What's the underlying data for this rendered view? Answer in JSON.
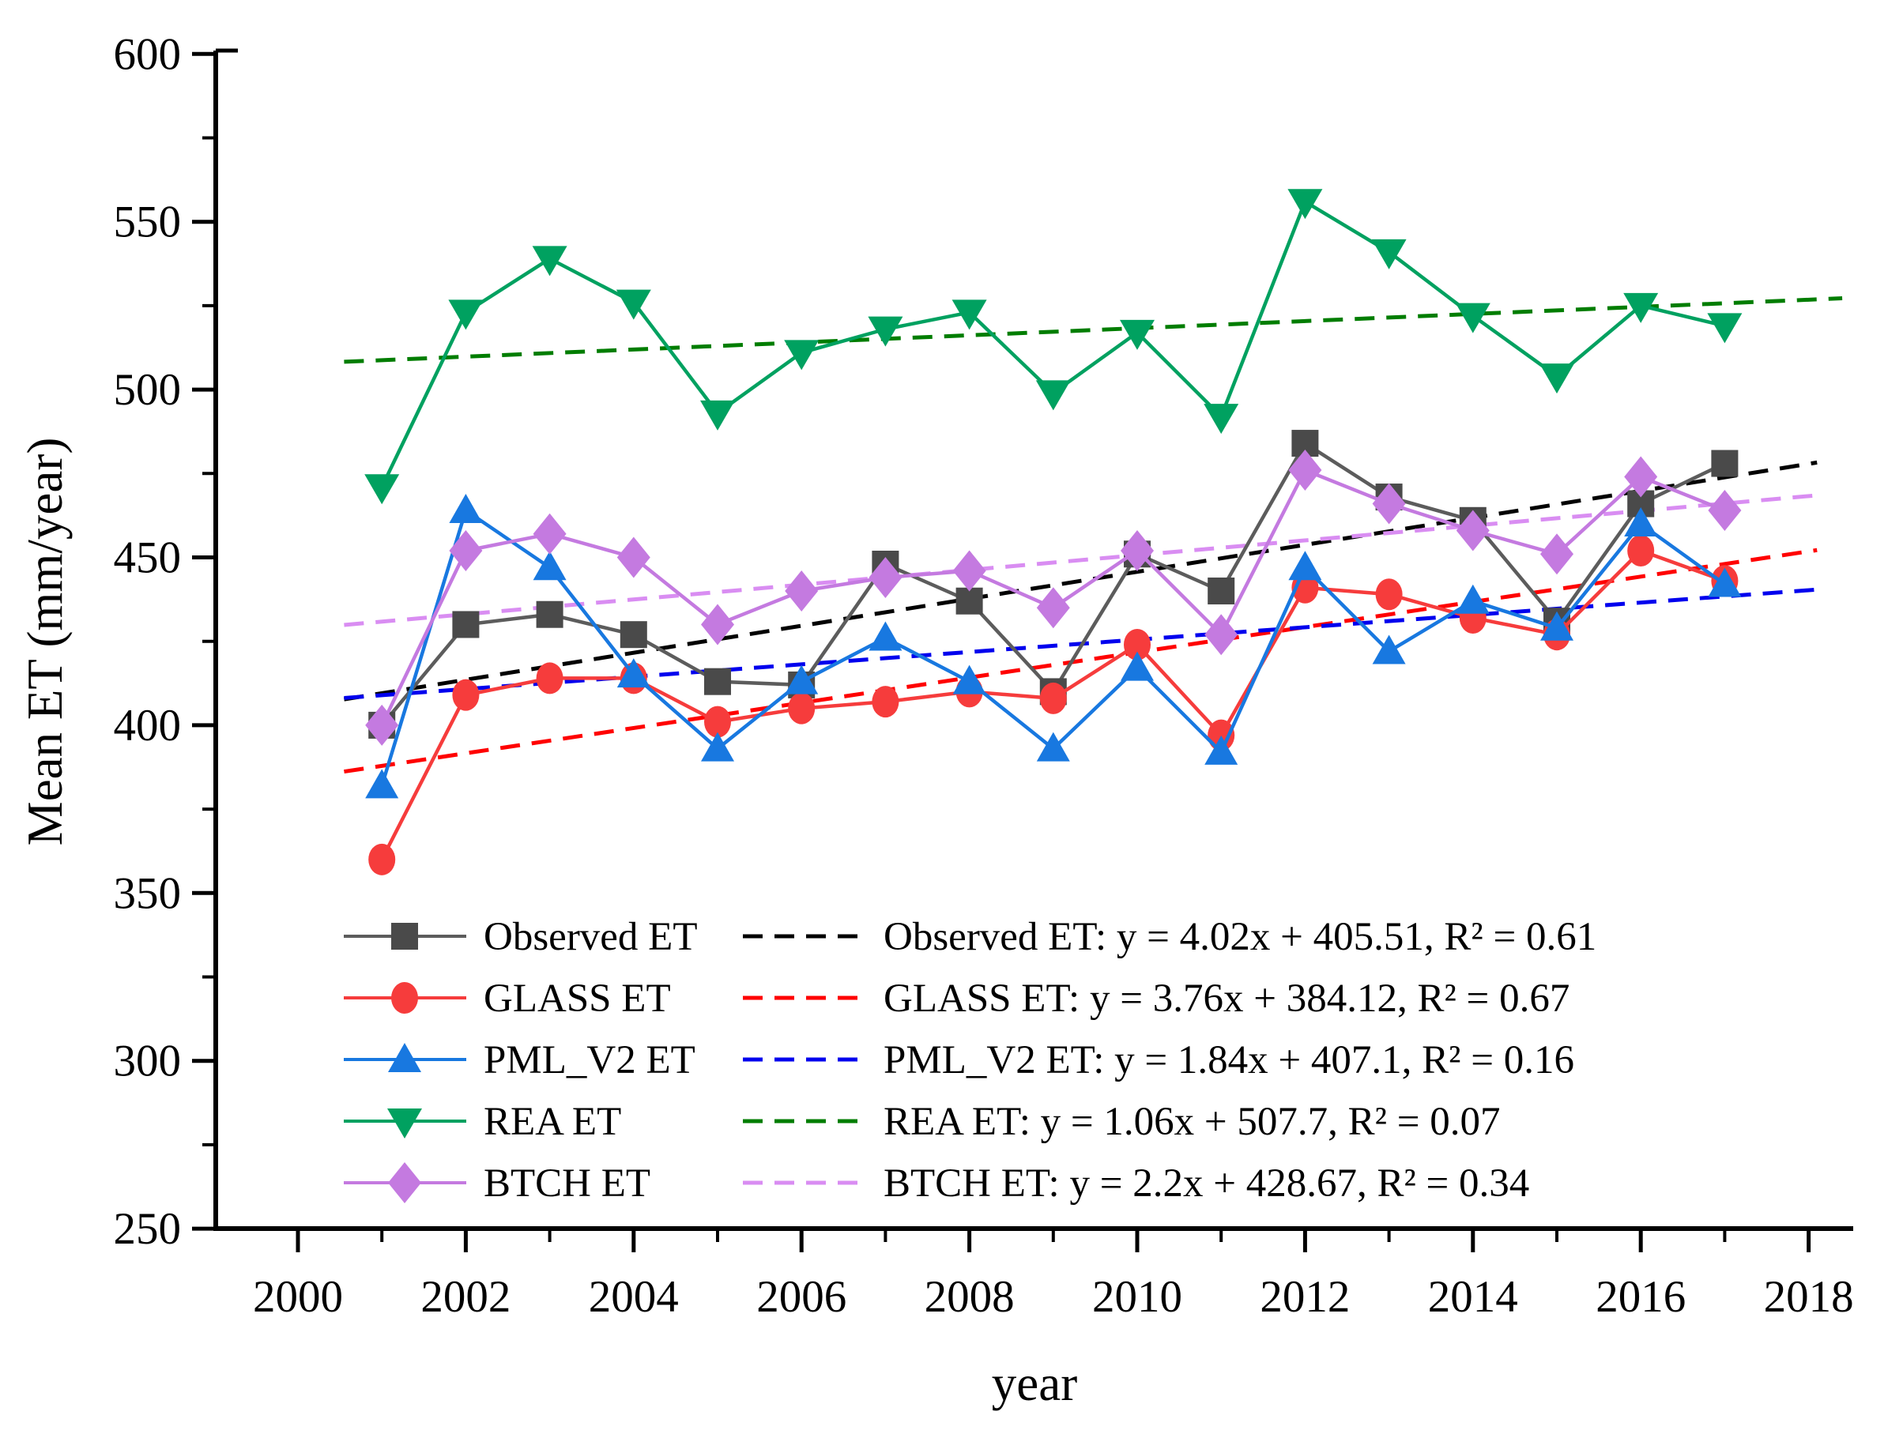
{
  "chart_data": {
    "type": "line",
    "title": "",
    "xlabel": "year",
    "ylabel": "Mean ET (mm/year)",
    "xlim": [
      1999,
      2018.6
    ],
    "ylim": [
      250,
      600
    ],
    "x_major_ticks": [
      2000,
      2002,
      2004,
      2006,
      2008,
      2010,
      2012,
      2014,
      2016,
      2018
    ],
    "x_minor_ticks": [
      2001,
      2003,
      2005,
      2007,
      2009,
      2011,
      2013,
      2015,
      2017
    ],
    "y_major_ticks": [
      250,
      300,
      350,
      400,
      450,
      500,
      550,
      600
    ],
    "y_minor_ticks": [
      275,
      325,
      375,
      425,
      475,
      525,
      575
    ],
    "grid": false,
    "legend_position": "inside-lower-left-two-columns",
    "years": [
      2001,
      2002,
      2003,
      2004,
      2005,
      2006,
      2007,
      2008,
      2009,
      2010,
      2011,
      2012,
      2013,
      2014,
      2015,
      2016,
      2017
    ],
    "series": [
      {
        "name": "Observed ET",
        "marker": "square",
        "color": "#4a4a4a",
        "line_color": "#5c5c5c",
        "values": [
          400,
          430,
          433,
          427,
          413,
          412,
          448,
          437,
          410,
          451,
          440,
          484,
          468,
          461,
          431,
          466,
          478
        ]
      },
      {
        "name": "GLASS ET",
        "marker": "circle",
        "color": "#f63c3c",
        "line_color": "#f63c3c",
        "values": [
          360,
          409,
          414,
          414,
          401,
          405,
          407,
          410,
          408,
          424,
          397,
          441,
          439,
          432,
          427,
          452,
          443
        ]
      },
      {
        "name": "PML_V2 ET",
        "marker": "triangle-up",
        "color": "#1878e0",
        "line_color": "#1878e0",
        "values": [
          382,
          464,
          447,
          415,
          393,
          413,
          426,
          413,
          393,
          417,
          392,
          447,
          422,
          437,
          429,
          460,
          442
        ]
      },
      {
        "name": "REA ET",
        "marker": "triangle-down",
        "color": "#00a160",
        "line_color": "#00a160",
        "values": [
          471,
          523,
          539,
          526,
          493,
          511,
          518,
          523,
          499,
          517,
          492,
          556,
          541,
          522,
          504,
          525,
          519
        ]
      },
      {
        "name": "BTCH ET",
        "marker": "diamond",
        "color": "#c47ae0",
        "line_color": "#c47ae0",
        "values": [
          400,
          452,
          457,
          450,
          430,
          440,
          444,
          446,
          435,
          452,
          427,
          476,
          466,
          458,
          451,
          474,
          464
        ]
      }
    ],
    "trendlines": [
      {
        "name": "Observed ET",
        "equation": "Observed ET:  y = 4.02x + 405.51, R² = 0.61",
        "slope": 4.02,
        "intercept": 405.51,
        "r2": 0.61,
        "color": "#000000"
      },
      {
        "name": "GLASS ET",
        "equation": "GLASS ET: y = 3.76x + 384.12,  R² = 0.67",
        "slope": 3.76,
        "intercept": 384.12,
        "r2": 0.67,
        "color": "#ff0000"
      },
      {
        "name": "PML_V2 ET",
        "equation": "PML_V2 ET: y = 1.84x + 407.1, R² = 0.16",
        "slope": 1.84,
        "intercept": 407.1,
        "r2": 0.16,
        "color": "#0000ee"
      },
      {
        "name": "REA ET",
        "equation": "REA ET: y = 1.06x + 507.7, R² = 0.07",
        "slope": 1.06,
        "intercept": 507.7,
        "r2": 0.07,
        "color": "#007d00"
      },
      {
        "name": "BTCH ET",
        "equation": "BTCH ET:  y = 2.2x + 428.67, R² = 0.34",
        "slope": 2.2,
        "intercept": 428.67,
        "r2": 0.34,
        "color": "#d98df2"
      }
    ],
    "trend_x_definition": "x = year - 2000"
  }
}
